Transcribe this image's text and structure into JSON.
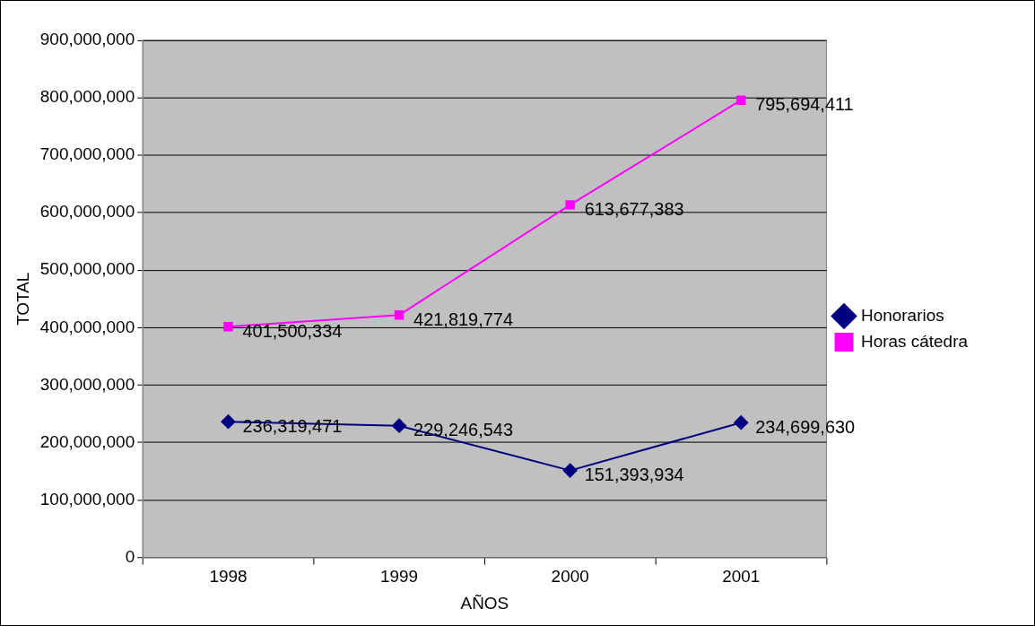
{
  "chart_data": {
    "type": "line",
    "xlabel": "AÑOS",
    "ylabel": "TOTAL",
    "categories": [
      "1998",
      "1999",
      "2000",
      "2001"
    ],
    "series": [
      {
        "name": "Honorarios",
        "color": "#000080",
        "marker": "diamond",
        "values": [
          236319471,
          229246543,
          151393934,
          234699630
        ],
        "value_labels": [
          "236,319,471",
          "229,246,543",
          "151,393,934",
          "234,699,630"
        ]
      },
      {
        "name": "Horas cátedra",
        "color": "#ff00ff",
        "marker": "square",
        "values": [
          401500334,
          421819774,
          613677383,
          795694411
        ],
        "value_labels": [
          "401,500,334",
          "421,819,774",
          "613,677,383",
          "795,694,411"
        ]
      }
    ],
    "ylim": [
      0,
      900000000
    ],
    "yticks": [
      0,
      {
        "value": 100000000,
        "label": "100,000,000"
      },
      {
        "value": 200000000,
        "label": "200,000,000"
      },
      {
        "value": 300000000,
        "label": "300,000,000"
      },
      {
        "value": 400000000,
        "label": "400,000,000"
      },
      {
        "value": 500000000,
        "label": "500,000,000"
      },
      {
        "value": 600000000,
        "label": "600,000,000"
      },
      {
        "value": 700000000,
        "label": "700,000,000"
      },
      {
        "value": 800000000,
        "label": "800,000,000"
      },
      {
        "value": 900000000,
        "label": "900,000,000"
      }
    ],
    "grid": "y",
    "legend": "right"
  }
}
